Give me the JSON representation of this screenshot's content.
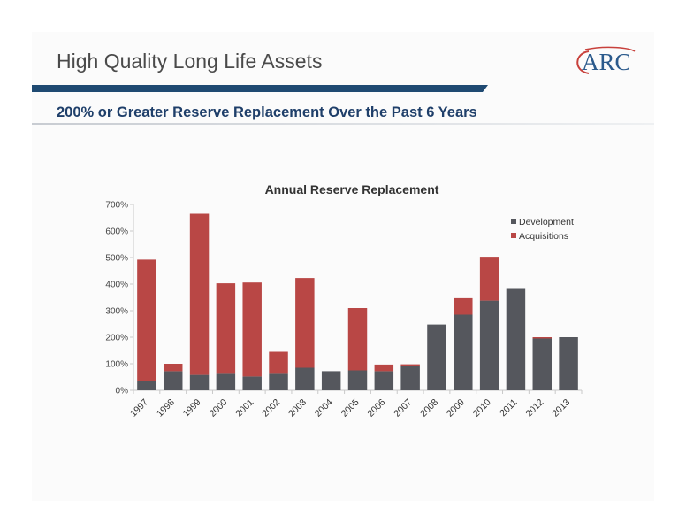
{
  "slide": {
    "title": "High Quality Long Life Assets",
    "subtitle": "200% or Greater Reserve Replacement Over the Past 6 Years",
    "logo_text": "ARC"
  },
  "colors": {
    "development": "#55575d",
    "acquisitions": "#b94745",
    "title_bar": "#1f4a72",
    "subtitle": "#1f3f6a",
    "logo": "#2b5a8c",
    "logo_arc": "#c8413c"
  },
  "chart_data": {
    "type": "bar",
    "stacked": true,
    "title": "Annual Reserve Replacement",
    "categories": [
      "1997",
      "1998",
      "1999",
      "2000",
      "2001",
      "2002",
      "2003",
      "2004",
      "2005",
      "2006",
      "2007",
      "2008",
      "2009",
      "2010",
      "2011",
      "2012",
      "2013"
    ],
    "series": [
      {
        "name": "Development",
        "values": [
          35,
          72,
          58,
          62,
          52,
          62,
          85,
          72,
          75,
          72,
          90,
          248,
          285,
          338,
          385,
          195,
          200
        ]
      },
      {
        "name": "Acquisitions",
        "values": [
          457,
          28,
          607,
          341,
          354,
          83,
          338,
          0,
          235,
          25,
          8,
          0,
          62,
          165,
          0,
          5,
          0
        ]
      }
    ],
    "ylim": [
      0,
      700
    ],
    "yticks": [
      0,
      100,
      200,
      300,
      400,
      500,
      600,
      700
    ],
    "ytick_labels": [
      "0%",
      "100%",
      "200%",
      "300%",
      "400%",
      "500%",
      "600%",
      "700%"
    ],
    "xlabel": "",
    "ylabel": "",
    "legend_position": "top-right",
    "grid": false
  }
}
